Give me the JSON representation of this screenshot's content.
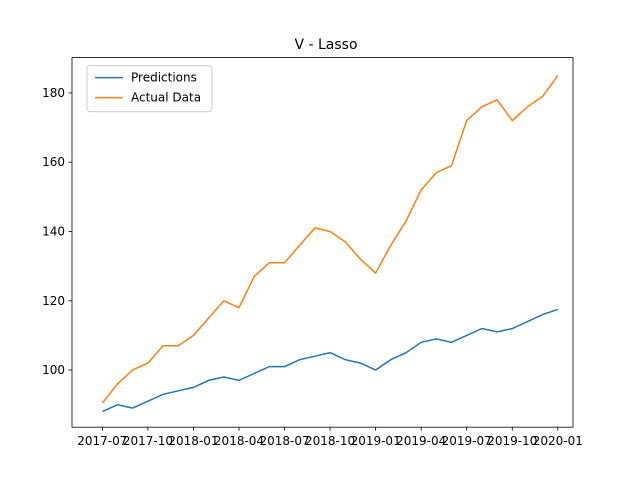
{
  "chart_data": {
    "type": "line",
    "title": "V - Lasso",
    "x": [
      "2017-07",
      "2017-08",
      "2017-09",
      "2017-10",
      "2017-11",
      "2017-12",
      "2018-01",
      "2018-02",
      "2018-03",
      "2018-04",
      "2018-05",
      "2018-06",
      "2018-07",
      "2018-08",
      "2018-09",
      "2018-10",
      "2018-11",
      "2018-12",
      "2019-01",
      "2019-02",
      "2019-03",
      "2019-04",
      "2019-05",
      "2019-06",
      "2019-07",
      "2019-08",
      "2019-09",
      "2019-10",
      "2019-11",
      "2019-12",
      "2020-01"
    ],
    "series": [
      {
        "name": "Predictions",
        "color": "#1f77b4",
        "values": [
          88,
          90,
          89,
          91,
          93,
          94,
          95,
          97,
          98,
          97,
          99,
          101,
          101,
          103,
          104,
          105,
          103,
          102,
          100,
          103,
          105,
          108,
          109,
          108,
          110,
          112,
          111,
          112,
          114,
          116,
          117.5
        ]
      },
      {
        "name": "Actual Data",
        "color": "#ff7f0e",
        "values": [
          90.5,
          96,
          100,
          102,
          107,
          107,
          110,
          115,
          120,
          118,
          127,
          131,
          131,
          136,
          141,
          140,
          137,
          132,
          128,
          136,
          143,
          152,
          157,
          159,
          172,
          176,
          178,
          172,
          176,
          179,
          185
        ]
      }
    ],
    "xlim": [
      "2017-05",
      "2020-02"
    ],
    "xticks": [
      "2017-07",
      "2017-10",
      "2018-01",
      "2018-04",
      "2018-07",
      "2018-10",
      "2019-01",
      "2019-04",
      "2019-07",
      "2019-10",
      "2020-01"
    ],
    "ylim": [
      83.5,
      190.2
    ],
    "yticks": [
      100,
      120,
      140,
      160,
      180
    ],
    "legend": "upper left"
  }
}
